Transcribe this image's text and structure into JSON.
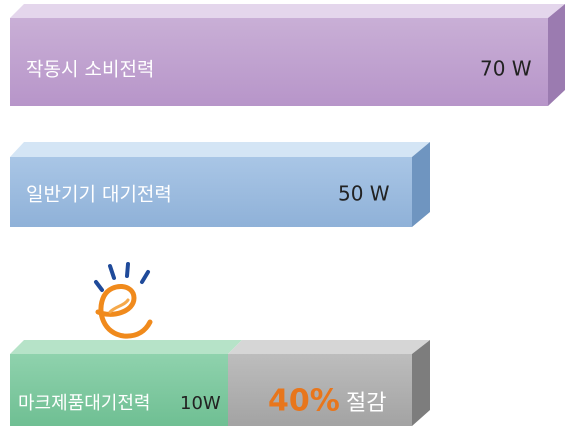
{
  "bars": [
    {
      "label": "작동시 소비전력",
      "value": "70 W"
    },
    {
      "label": "일반기기 대기전력",
      "value": "50 W"
    },
    {
      "label": "마크제품대기전력",
      "value": "10W"
    }
  ],
  "saving": {
    "percent": "40%",
    "text": "절감"
  }
}
